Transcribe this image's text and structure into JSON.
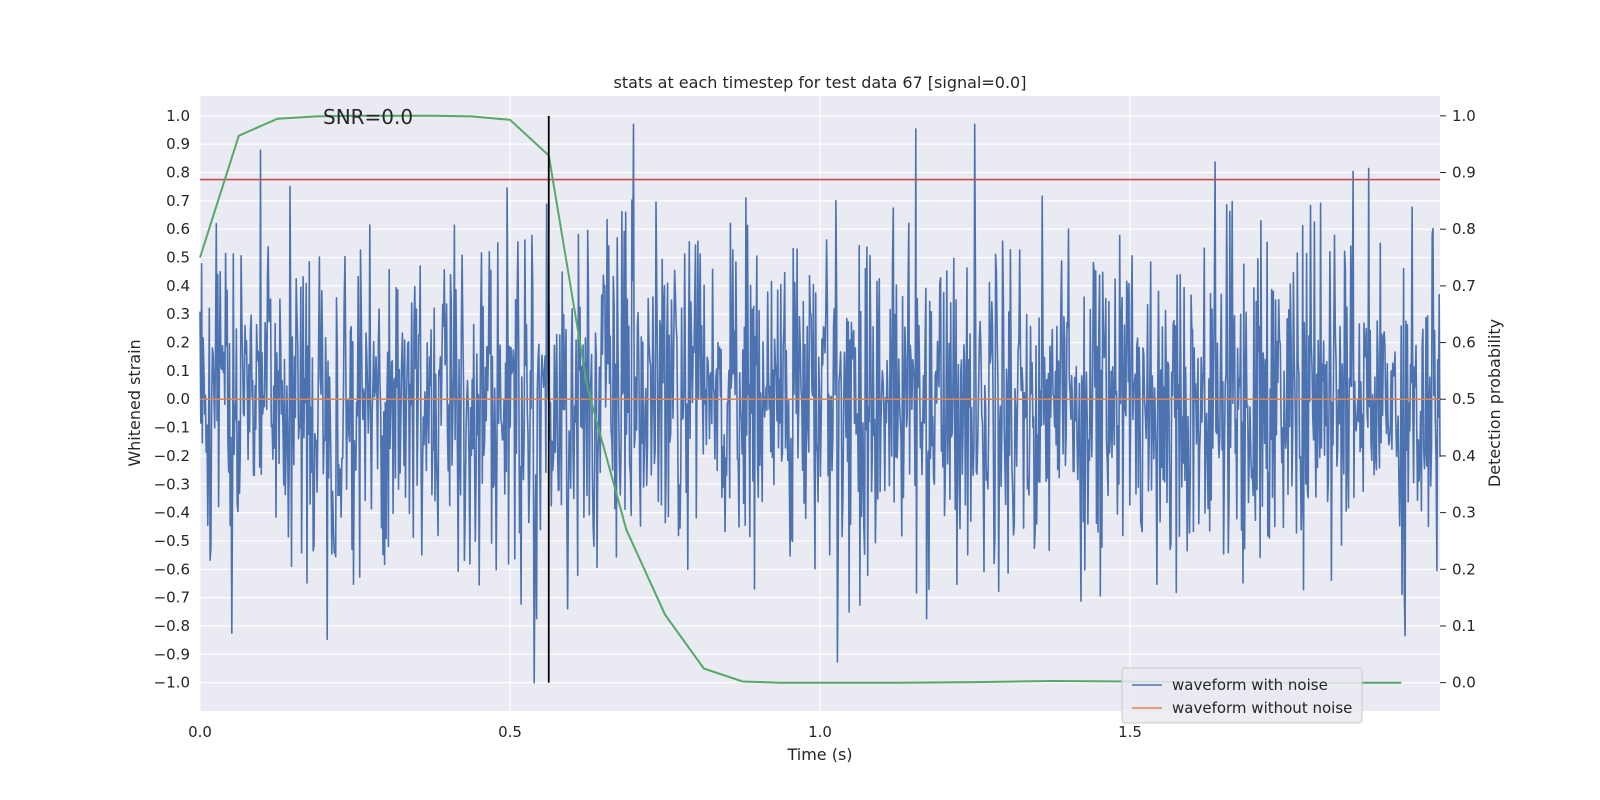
{
  "chart_data": {
    "type": "line",
    "title": "stats at each timestep for test data 67 [signal=0.0]",
    "xlabel": "Time (s)",
    "ylabel": "Whitened strain",
    "y2label": "Detection probability",
    "xlim": [
      0.0,
      2.0
    ],
    "ylim": [
      -1.1,
      1.07
    ],
    "y2lim": [
      -0.05,
      1.035
    ],
    "x_ticks": [
      0.0,
      0.5,
      1.0,
      1.5
    ],
    "x_tick_labels": [
      "0.0",
      "0.5",
      "1.0",
      "1.5"
    ],
    "y_ticks": [
      1.0,
      0.9,
      0.8,
      0.7,
      0.6,
      0.5,
      0.4,
      0.3,
      0.2,
      0.1,
      0.0,
      -0.1,
      -0.2,
      -0.3,
      -0.4,
      -0.5,
      -0.6,
      -0.7,
      -0.8,
      -0.9,
      -1.0
    ],
    "y_tick_labels": [
      "1.0",
      "0.9",
      "0.8",
      "0.7",
      "0.6",
      "0.5",
      "0.4",
      "0.3",
      "0.2",
      "0.1",
      "0.0",
      "−0.1",
      "−0.2",
      "−0.3",
      "−0.4",
      "−0.5",
      "−0.6",
      "−0.7",
      "−0.8",
      "−0.9",
      "−1.0"
    ],
    "y2_ticks": [
      1.0,
      0.9,
      0.8,
      0.7,
      0.6,
      0.5,
      0.4,
      0.3,
      0.2,
      0.1,
      0.0
    ],
    "y2_tick_labels": [
      "1.0",
      "0.9",
      "0.8",
      "0.7",
      "0.6",
      "0.5",
      "0.4",
      "0.3",
      "0.2",
      "0.1",
      "0.0"
    ],
    "annotation": {
      "text": "SNR=0.0",
      "x": 0.2,
      "y": 0.97
    },
    "threshold_y": 0.775,
    "event_line_x": 0.5625,
    "legend_position": "lower right",
    "noise_seed": 67,
    "noise_amplitude": 0.3,
    "series": [
      {
        "name": "waveform with noise",
        "color": "#4c72b0",
        "axis": "left",
        "values": "randomized noise strain over 0.0–2.0 s, range approx −1.0 to 0.97"
      },
      {
        "name": "waveform without noise",
        "color": "#dd8452",
        "axis": "left",
        "x": [
          0.0,
          2.0
        ],
        "y": [
          0.0,
          0.0
        ]
      },
      {
        "name": "detection probability",
        "color": "#55a868",
        "axis": "right",
        "x": [
          0.0,
          0.0625,
          0.125,
          0.1875,
          0.25,
          0.3125,
          0.375,
          0.4375,
          0.5,
          0.5625,
          0.625,
          0.6875,
          0.75,
          0.8125,
          0.875,
          0.9375,
          1.0,
          1.125,
          1.25,
          1.375,
          1.5,
          1.625,
          1.75,
          1.875,
          1.9375
        ],
        "y": [
          0.75,
          0.965,
          0.995,
          0.999,
          1.0,
          1.0,
          1.0,
          0.999,
          0.993,
          0.93,
          0.52,
          0.27,
          0.12,
          0.025,
          0.002,
          0.0,
          0.0,
          0.0,
          0.001,
          0.003,
          0.002,
          0.001,
          0.0,
          0.0,
          0.0
        ]
      },
      {
        "name": "threshold",
        "color": "#c44e52",
        "axis": "left",
        "x": [
          0.0,
          2.0
        ],
        "y": [
          0.775,
          0.775
        ]
      }
    ]
  },
  "colors": {
    "background": "#eaeaf2",
    "grid": "#ffffff",
    "noise": "#4c72b0",
    "clean": "#dd8452",
    "probability": "#55a868",
    "threshold": "#c44e52",
    "event_line": "#000000"
  }
}
